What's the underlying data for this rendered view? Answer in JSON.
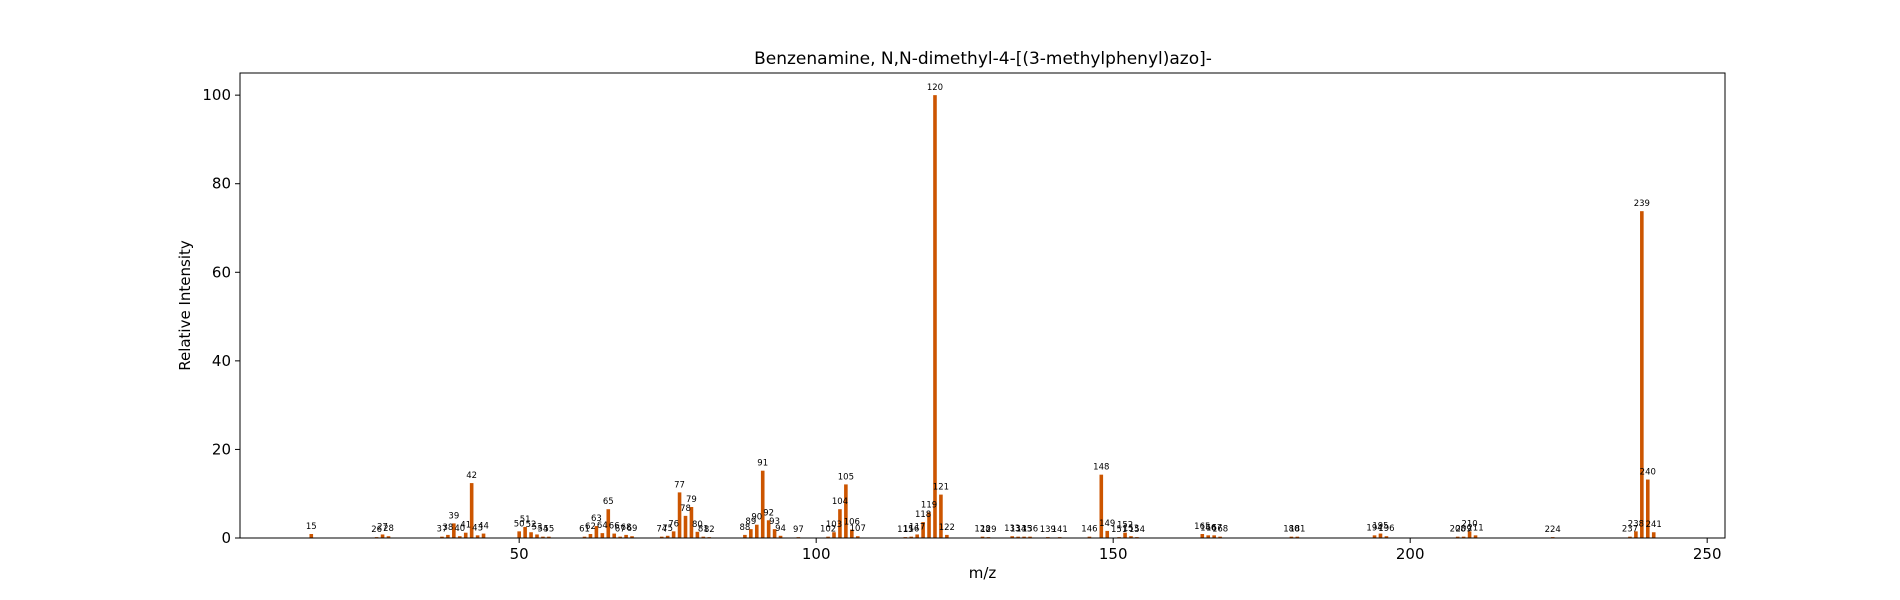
{
  "chart_data": {
    "type": "bar",
    "title": "Benzenamine, N,N-dimethyl-4-[(3-methylphenyl)azo]-",
    "xlabel": "m/z",
    "ylabel": "Relative Intensity",
    "xlim": [
      3,
      253
    ],
    "ylim": [
      0,
      105
    ],
    "xticks": [
      50,
      100,
      150,
      200,
      250
    ],
    "yticks": [
      0,
      20,
      40,
      60,
      80,
      100
    ],
    "bar_color": "#cc5500",
    "grid": false,
    "peaks": [
      {
        "mz": 15,
        "intensity": 0.9
      },
      {
        "mz": 26,
        "intensity": 0.2
      },
      {
        "mz": 27,
        "intensity": 0.8
      },
      {
        "mz": 28,
        "intensity": 0.4
      },
      {
        "mz": 37,
        "intensity": 0.3
      },
      {
        "mz": 38,
        "intensity": 0.7
      },
      {
        "mz": 39,
        "intensity": 3.3
      },
      {
        "mz": 40,
        "intensity": 0.4
      },
      {
        "mz": 41,
        "intensity": 1.2
      },
      {
        "mz": 42,
        "intensity": 12.4
      },
      {
        "mz": 43,
        "intensity": 0.6
      },
      {
        "mz": 44,
        "intensity": 1.0
      },
      {
        "mz": 50,
        "intensity": 1.5
      },
      {
        "mz": 51,
        "intensity": 2.5
      },
      {
        "mz": 52,
        "intensity": 1.3
      },
      {
        "mz": 53,
        "intensity": 0.8
      },
      {
        "mz": 54,
        "intensity": 0.3
      },
      {
        "mz": 55,
        "intensity": 0.3
      },
      {
        "mz": 61,
        "intensity": 0.3
      },
      {
        "mz": 62,
        "intensity": 0.9
      },
      {
        "mz": 63,
        "intensity": 2.7
      },
      {
        "mz": 64,
        "intensity": 1.1
      },
      {
        "mz": 65,
        "intensity": 6.5
      },
      {
        "mz": 66,
        "intensity": 1.0
      },
      {
        "mz": 67,
        "intensity": 0.3
      },
      {
        "mz": 68,
        "intensity": 0.7
      },
      {
        "mz": 69,
        "intensity": 0.4
      },
      {
        "mz": 74,
        "intensity": 0.3
      },
      {
        "mz": 75,
        "intensity": 0.5
      },
      {
        "mz": 76,
        "intensity": 1.5
      },
      {
        "mz": 77,
        "intensity": 10.3
      },
      {
        "mz": 78,
        "intensity": 5.0
      },
      {
        "mz": 79,
        "intensity": 7.0
      },
      {
        "mz": 80,
        "intensity": 1.4
      },
      {
        "mz": 81,
        "intensity": 0.3
      },
      {
        "mz": 82,
        "intensity": 0.2
      },
      {
        "mz": 88,
        "intensity": 0.7
      },
      {
        "mz": 89,
        "intensity": 2.0
      },
      {
        "mz": 90,
        "intensity": 3.0
      },
      {
        "mz": 91,
        "intensity": 15.2
      },
      {
        "mz": 92,
        "intensity": 4.0
      },
      {
        "mz": 93,
        "intensity": 2.0
      },
      {
        "mz": 94,
        "intensity": 0.5
      },
      {
        "mz": 97,
        "intensity": 0.2
      },
      {
        "mz": 102,
        "intensity": 0.3
      },
      {
        "mz": 103,
        "intensity": 1.3
      },
      {
        "mz": 104,
        "intensity": 6.5
      },
      {
        "mz": 105,
        "intensity": 12.1
      },
      {
        "mz": 106,
        "intensity": 1.9
      },
      {
        "mz": 107,
        "intensity": 0.4
      },
      {
        "mz": 115,
        "intensity": 0.2
      },
      {
        "mz": 116,
        "intensity": 0.3
      },
      {
        "mz": 117,
        "intensity": 0.8
      },
      {
        "mz": 118,
        "intensity": 3.6
      },
      {
        "mz": 119,
        "intensity": 5.8
      },
      {
        "mz": 120,
        "intensity": 100
      },
      {
        "mz": 121,
        "intensity": 9.8
      },
      {
        "mz": 122,
        "intensity": 0.7
      },
      {
        "mz": 128,
        "intensity": 0.3
      },
      {
        "mz": 129,
        "intensity": 0.2
      },
      {
        "mz": 133,
        "intensity": 0.4
      },
      {
        "mz": 134,
        "intensity": 0.3
      },
      {
        "mz": 135,
        "intensity": 0.3
      },
      {
        "mz": 136,
        "intensity": 0.3
      },
      {
        "mz": 139,
        "intensity": 0.2
      },
      {
        "mz": 141,
        "intensity": 0.2
      },
      {
        "mz": 146,
        "intensity": 0.3
      },
      {
        "mz": 148,
        "intensity": 14.3
      },
      {
        "mz": 149,
        "intensity": 1.6
      },
      {
        "mz": 151,
        "intensity": 0.2
      },
      {
        "mz": 152,
        "intensity": 1.2
      },
      {
        "mz": 153,
        "intensity": 0.4
      },
      {
        "mz": 154,
        "intensity": 0.2
      },
      {
        "mz": 165,
        "intensity": 0.9
      },
      {
        "mz": 166,
        "intensity": 0.6
      },
      {
        "mz": 167,
        "intensity": 0.6
      },
      {
        "mz": 168,
        "intensity": 0.3
      },
      {
        "mz": 180,
        "intensity": 0.3
      },
      {
        "mz": 181,
        "intensity": 0.3
      },
      {
        "mz": 194,
        "intensity": 0.6
      },
      {
        "mz": 195,
        "intensity": 1.0
      },
      {
        "mz": 196,
        "intensity": 0.4
      },
      {
        "mz": 208,
        "intensity": 0.3
      },
      {
        "mz": 209,
        "intensity": 0.3
      },
      {
        "mz": 210,
        "intensity": 1.5
      },
      {
        "mz": 211,
        "intensity": 0.6
      },
      {
        "mz": 224,
        "intensity": 0.2
      },
      {
        "mz": 237,
        "intensity": 0.3
      },
      {
        "mz": 238,
        "intensity": 1.5
      },
      {
        "mz": 239,
        "intensity": 73.8
      },
      {
        "mz": 240,
        "intensity": 13.2
      },
      {
        "mz": 241,
        "intensity": 1.3
      }
    ]
  }
}
